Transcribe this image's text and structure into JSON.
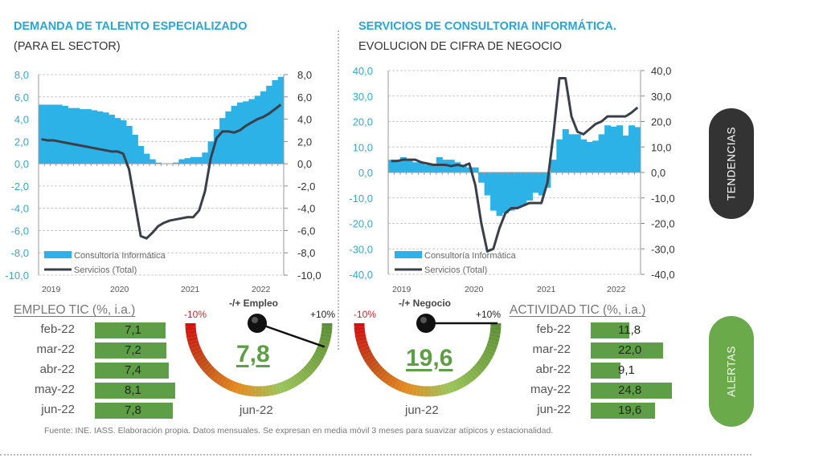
{
  "left": {
    "title": "DEMANDA DE TALENTO ESPECIALIZADO",
    "subtitle": "(PARA EL SECTOR)"
  },
  "right": {
    "title": "SERVICIOS DE CONSULTORIA INFORMÁTICA.",
    "subtitle": "EVOLUCION DE CIFRA DE NEGOCIO"
  },
  "colors": {
    "bars": "#2cb2e6",
    "line": "#3a3f4a",
    "gauge_low": "#d40f0f",
    "gauge_mid": "#e58a1f",
    "gauge_high": "#5e8f37",
    "table_bar": "#5e9e47",
    "tendencias": "#333333",
    "alertas": "#6aaa4a"
  },
  "chart_data": [
    {
      "type": "bar+line",
      "period": "monthly, ene-2019 a jun-2022",
      "x_tick_labels": [
        "2019",
        "2020",
        "2021",
        "2022"
      ],
      "y_tick_labels": [
        "8,0",
        "6,0",
        "4,0",
        "2,0",
        "0,0",
        "-2,0",
        "-4,0",
        "-6,0",
        "-8,0",
        "-10,0"
      ],
      "ylim": [
        -10,
        8
      ],
      "y2lim": [
        -10,
        8
      ],
      "grid": true,
      "legend": "bottom-left",
      "series": [
        {
          "name": "Consultoría Informática",
          "type": "bar",
          "values": [
            5.3,
            5.3,
            5.3,
            5.3,
            5.2,
            5.0,
            5.0,
            4.9,
            4.9,
            4.8,
            4.7,
            4.6,
            4.4,
            4.1,
            3.9,
            3.4,
            2.6,
            1.6,
            0.9,
            0.4,
            0.1,
            0.0,
            0.0,
            0.1,
            0.4,
            0.5,
            0.6,
            0.6,
            1.0,
            2.0,
            3.1,
            4.1,
            4.7,
            5.2,
            5.5,
            5.6,
            5.8,
            6.1,
            6.5,
            7.0,
            7.5,
            7.8
          ]
        },
        {
          "name": "Servicios (Total)",
          "type": "line",
          "values": [
            2.2,
            2.1,
            2.1,
            2.0,
            1.9,
            1.8,
            1.7,
            1.6,
            1.5,
            1.4,
            1.3,
            1.2,
            1.1,
            1.1,
            0.9,
            -0.5,
            -3.5,
            -6.5,
            -6.7,
            -6.2,
            -5.6,
            -5.3,
            -5.1,
            -5.0,
            -4.9,
            -4.8,
            -4.8,
            -4.2,
            -2.5,
            0.5,
            2.3,
            2.9,
            2.9,
            2.8,
            3.0,
            3.4,
            3.7,
            4.0,
            4.2,
            4.5,
            4.9,
            5.3
          ]
        }
      ]
    },
    {
      "type": "bar+line",
      "period": "monthly, ene-2019 a jun-2022",
      "x_tick_labels": [
        "2019",
        "2020",
        "2021",
        "2022"
      ],
      "y_tick_labels": [
        "40,0",
        "30,0",
        "20,0",
        "10,0",
        "0,0",
        "-10,0",
        "-20,0",
        "-30,0",
        "-40,0"
      ],
      "ylim": [
        -40,
        40
      ],
      "y2lim": [
        -40,
        40
      ],
      "grid": true,
      "legend": "bottom-left",
      "series": [
        {
          "name": "Consultoría Informática",
          "type": "bar",
          "values": [
            5,
            5,
            6,
            5,
            4,
            4,
            3,
            3,
            6,
            5,
            5,
            4,
            3,
            2,
            2,
            -4,
            -9,
            -15,
            -17,
            -16,
            -15,
            -14,
            -13,
            -11,
            -8,
            -9,
            -6,
            5,
            13,
            17,
            15,
            15,
            13,
            12,
            12.5,
            15,
            18.5,
            18,
            18.5,
            14.5,
            18.5,
            17.8
          ]
        },
        {
          "name": "Servicios (Total)",
          "type": "line",
          "values": [
            4.5,
            4.5,
            5,
            5,
            5,
            4,
            3.5,
            3,
            3,
            3,
            2.5,
            3,
            2.5,
            3.5,
            -5,
            -20,
            -31,
            -30,
            -22,
            -16,
            -14,
            -14,
            -13,
            -12,
            -12,
            -12,
            -4,
            15,
            37,
            37,
            22,
            16,
            15,
            17,
            19,
            20,
            22,
            22,
            22,
            22,
            23.5,
            25.5
          ]
        }
      ]
    }
  ],
  "empleo": {
    "heading": "EMPLEO TIC (%, i.a.)",
    "rows": [
      {
        "label": "feb-22",
        "value": 7.1,
        "text": "7,1"
      },
      {
        "label": "mar-22",
        "value": 7.2,
        "text": "7,2"
      },
      {
        "label": "abr-22",
        "value": 7.4,
        "text": "7,4"
      },
      {
        "label": "may-22",
        "value": 8.1,
        "text": "8,1"
      },
      {
        "label": "jun-22",
        "value": 7.8,
        "text": "7,8"
      }
    ]
  },
  "gauge_empleo": {
    "caption": "-/+ Empleo",
    "min_label": "-10%",
    "max_label": "+10%",
    "value": 7.8,
    "value_text": "7,8",
    "min": -10,
    "max": 10,
    "period": "jun-22"
  },
  "gauge_negocio": {
    "caption": "-/+ Negocio",
    "min_label": "-10%",
    "max_label": "+10%",
    "value": 19.6,
    "value_text": "19,6",
    "min": -10,
    "max": 10,
    "period": "jun-22"
  },
  "actividad": {
    "heading": "ACTIVIDAD TIC (%, i.a.)",
    "rows": [
      {
        "label": "feb-22",
        "value": 11.8,
        "text": "11,8"
      },
      {
        "label": "mar-22",
        "value": 22.0,
        "text": "22,0"
      },
      {
        "label": "abr-22",
        "value": 9.1,
        "text": "9,1"
      },
      {
        "label": "may-22",
        "value": 24.8,
        "text": "24,8"
      },
      {
        "label": "jun-22",
        "value": 19.6,
        "text": "19,6"
      }
    ]
  },
  "side": {
    "tendencias": "TENDENCIAS",
    "alertas": "ALERTAS"
  },
  "footer": "Fuente: INE. IASS. Elaboración propia. Datos mensuales. Se expresan en media móvil 3 meses  para suavizar atípicos y estacionalidad."
}
